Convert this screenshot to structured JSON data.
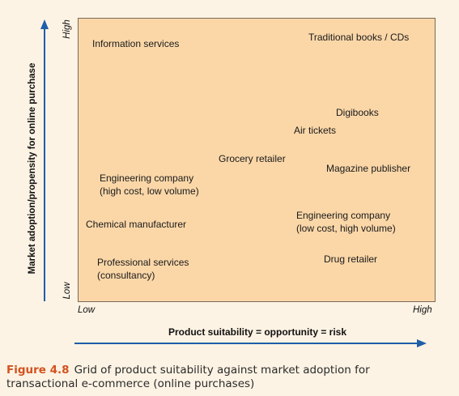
{
  "y_axis": {
    "title": "Market adoption/propensity for online purchase",
    "low": "Low",
    "high": "High"
  },
  "x_axis": {
    "title": "Product suitability = opportunity = risk",
    "low": "Low",
    "high": "High"
  },
  "items": [
    "Information services",
    "Traditional books / CDs",
    "Digibooks",
    "Air tickets",
    "Grocery retailer",
    "Magazine publisher",
    "Engineering company\n(high cost, low volume)",
    "Chemical manufacturer",
    "Engineering company\n(low cost, high volume)",
    "Professional services\n(consultancy)",
    "Drug retailer"
  ],
  "caption": {
    "label": "Figure 4.8",
    "text": "Grid of product suitability against market adoption for transactional e-commerce (online purchases)"
  },
  "colors": {
    "grid_fill": "#fbd7a8",
    "arrow": "#1f5ea8",
    "caption_label": "#d2531f"
  }
}
